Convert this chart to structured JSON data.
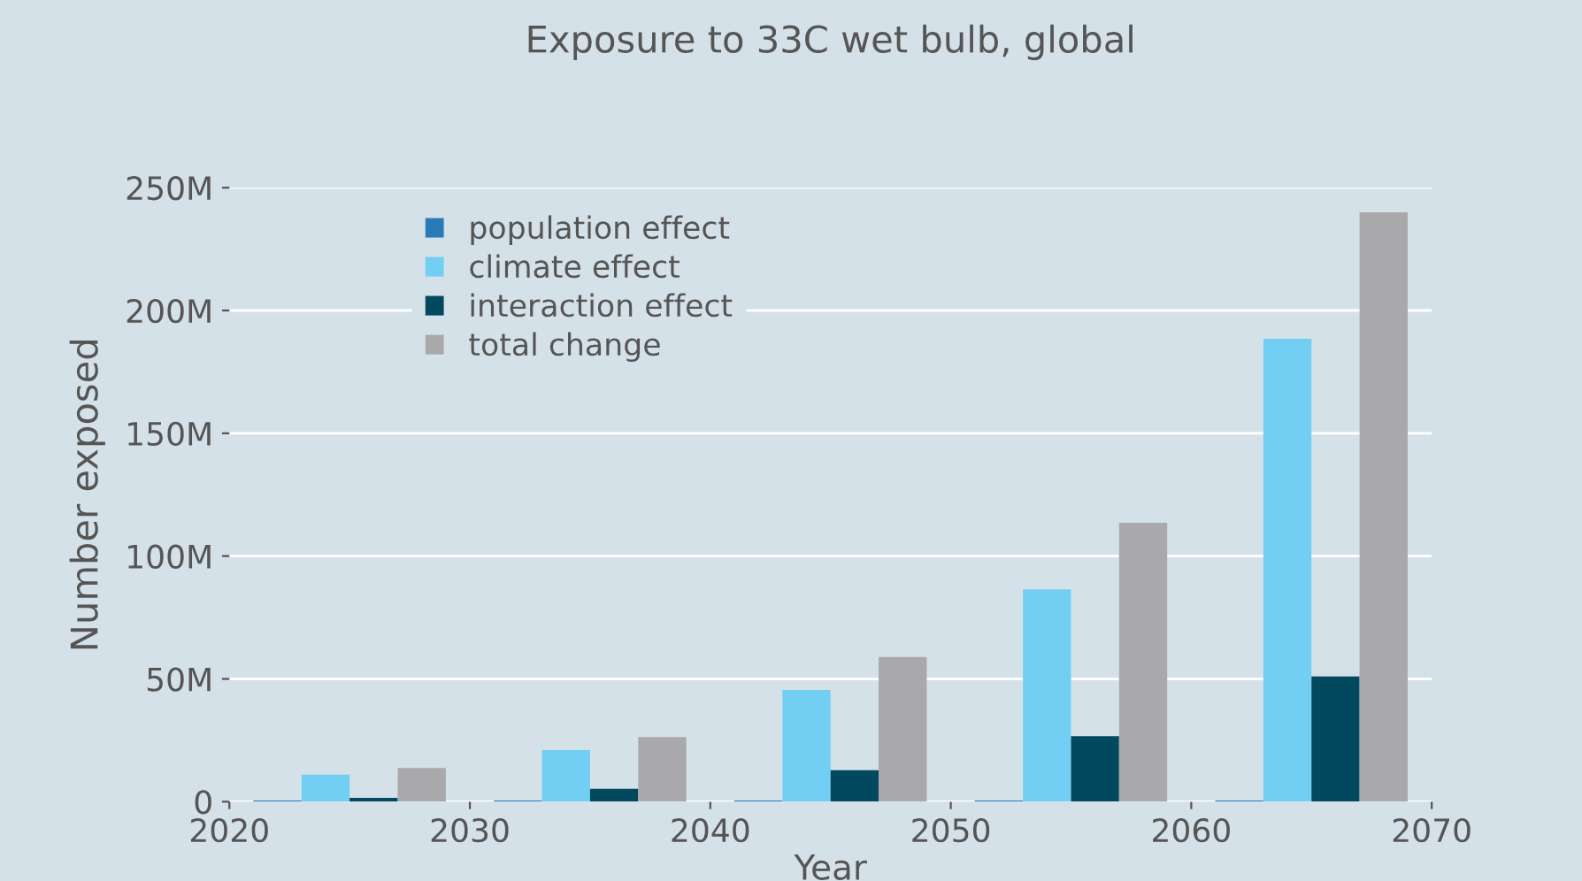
{
  "chart_data": {
    "type": "bar",
    "title": "Exposure to 33C wet bulb, global",
    "xlabel": "Year",
    "ylabel": "Number exposed",
    "series": [
      {
        "name": "population effect",
        "color": "#2a7ab8",
        "x": [
          2022,
          2032,
          2042,
          2052,
          2062
        ],
        "values": [
          0.5,
          0.5,
          0.5,
          0.5,
          0.5
        ]
      },
      {
        "name": "climate effect",
        "color": "#72cef2",
        "x": [
          2024,
          2034,
          2044,
          2054,
          2064
        ],
        "values": [
          11,
          21,
          45.5,
          86.5,
          188.5
        ]
      },
      {
        "name": "interaction effect",
        "color": "#02485f",
        "x": [
          2026,
          2036,
          2046,
          2056,
          2066
        ],
        "values": [
          1.6,
          5.3,
          12.8,
          26.7,
          51
        ]
      },
      {
        "name": "total change",
        "color": "#a9a8ab",
        "x": [
          2028,
          2038,
          2048,
          2058,
          2068
        ],
        "values": [
          13.7,
          26.3,
          58.9,
          113.6,
          240
        ]
      }
    ],
    "xlim": [
      2020,
      2070
    ],
    "xticks": [
      2020,
      2030,
      2040,
      2050,
      2060,
      2070
    ],
    "ylim": [
      0,
      250
    ],
    "yticks": [
      0,
      {
        "value": 50,
        "label": "50M"
      },
      {
        "value": 100,
        "label": "100M"
      },
      {
        "value": 150,
        "label": "150M"
      },
      {
        "value": 200,
        "label": "200M"
      },
      {
        "value": 250,
        "label": "250M"
      }
    ],
    "grid": "y",
    "legend": "top left"
  }
}
